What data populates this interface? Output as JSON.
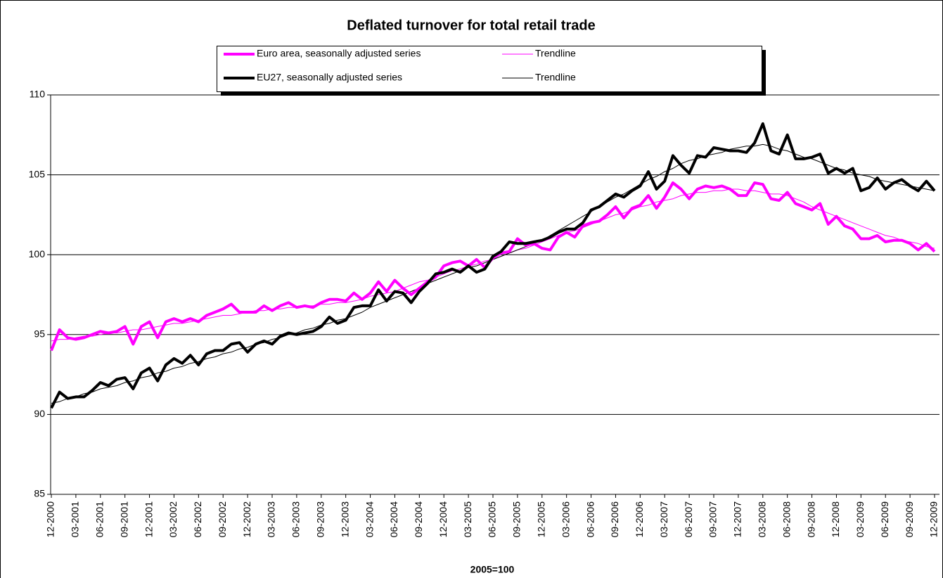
{
  "chart_data": {
    "type": "line",
    "title": "Deflated turnover for total retail trade",
    "x_label": "2005=100",
    "categories": [
      "12-2000",
      null,
      null,
      "03-2001",
      null,
      null,
      "06-2001",
      null,
      null,
      "09-2001",
      null,
      null,
      "12-2001",
      null,
      null,
      "03-2002",
      null,
      null,
      "06-2002",
      null,
      null,
      "09-2002",
      null,
      null,
      "12-2002",
      null,
      null,
      "03-2003",
      null,
      null,
      "06-2003",
      null,
      null,
      "09-2003",
      null,
      null,
      "12-2003",
      null,
      null,
      "03-2004",
      null,
      null,
      "06-2004",
      null,
      null,
      "09-2004",
      null,
      null,
      "12-2004",
      null,
      null,
      "03-2005",
      null,
      null,
      "06-2005",
      null,
      null,
      "09-2005",
      null,
      null,
      "12-2005",
      null,
      null,
      "03-2006",
      null,
      null,
      "06-2006",
      null,
      null,
      "09-2006",
      null,
      null,
      "12-2006",
      null,
      null,
      "03-2007",
      null,
      null,
      "06-2007",
      null,
      null,
      "09-2007",
      null,
      null,
      "12-2007",
      null,
      null,
      "03-2008",
      null,
      null,
      "06-2008",
      null,
      null,
      "09-2008",
      null,
      null,
      "12-2008",
      null,
      null,
      "03-2009",
      null,
      null,
      "06-2009",
      null,
      null,
      "09-2009",
      null,
      null,
      "12-2009"
    ],
    "ylim": [
      85,
      110
    ],
    "yticks": [
      85,
      90,
      95,
      100,
      105,
      110
    ],
    "grid": true,
    "series": [
      {
        "name": "Euro area, seasonally adjusted series",
        "color": "#ff00ff",
        "line_width": 4,
        "values": [
          94.0,
          95.3,
          94.8,
          94.7,
          94.8,
          95.0,
          95.2,
          95.1,
          95.2,
          95.5,
          94.4,
          95.5,
          95.8,
          94.8,
          95.8,
          96.0,
          95.8,
          96.0,
          95.8,
          96.2,
          96.4,
          96.6,
          96.9,
          96.4,
          96.4,
          96.4,
          96.8,
          96.5,
          96.8,
          97.0,
          96.7,
          96.8,
          96.7,
          97.0,
          97.2,
          97.2,
          97.1,
          97.6,
          97.2,
          97.6,
          98.3,
          97.7,
          98.4,
          97.9,
          97.5,
          97.9,
          98.3,
          98.6,
          99.3,
          99.5,
          99.6,
          99.3,
          99.7,
          99.2,
          99.8,
          100.1,
          100.2,
          101.0,
          100.6,
          100.7,
          100.4,
          100.3,
          101.1,
          101.4,
          101.1,
          101.8,
          102.0,
          102.1,
          102.5,
          103.0,
          102.3,
          102.9,
          103.1,
          103.7,
          102.9,
          103.6,
          104.5,
          104.1,
          103.5,
          104.1,
          104.3,
          104.2,
          104.3,
          104.1,
          103.7,
          103.7,
          104.5,
          104.4,
          103.5,
          103.4,
          103.9,
          103.2,
          103.0,
          102.8,
          103.2,
          101.9,
          102.4,
          101.8,
          101.6,
          101.0,
          101.0,
          101.2,
          100.8,
          100.9,
          100.9,
          100.7,
          100.3,
          100.7,
          100.2
        ]
      },
      {
        "name": "Trendline",
        "color": "#ff00ff",
        "line_width": 1,
        "values": [
          94.6,
          94.7,
          94.7,
          94.8,
          94.9,
          94.9,
          95.0,
          95.1,
          95.1,
          95.2,
          95.3,
          95.3,
          95.4,
          95.5,
          95.6,
          95.7,
          95.7,
          95.8,
          95.9,
          96.0,
          96.1,
          96.2,
          96.2,
          96.3,
          96.4,
          96.5,
          96.5,
          96.6,
          96.6,
          96.7,
          96.7,
          96.8,
          96.8,
          96.9,
          96.9,
          97.0,
          97.0,
          97.1,
          97.2,
          97.4,
          97.5,
          97.6,
          97.7,
          97.9,
          98.1,
          98.3,
          98.4,
          98.6,
          98.8,
          99.0,
          99.1,
          99.3,
          99.4,
          99.6,
          99.7,
          99.9,
          100.1,
          100.3,
          100.4,
          100.6,
          100.8,
          101.0,
          101.2,
          101.4,
          101.5,
          101.7,
          101.9,
          102.1,
          102.3,
          102.5,
          102.6,
          102.8,
          103.0,
          103.1,
          103.3,
          103.4,
          103.5,
          103.7,
          103.8,
          103.9,
          103.9,
          104.0,
          104.0,
          104.1,
          104.1,
          104.0,
          104.0,
          103.9,
          103.8,
          103.8,
          103.7,
          103.5,
          103.3,
          103.0,
          102.8,
          102.6,
          102.4,
          102.2,
          102.0,
          101.8,
          101.6,
          101.4,
          101.2,
          101.1,
          100.9,
          100.8,
          100.7,
          100.5,
          100.4
        ]
      },
      {
        "name": "EU27, seasonally adjusted series",
        "color": "#000000",
        "line_width": 4,
        "values": [
          90.4,
          91.4,
          91.0,
          91.1,
          91.1,
          91.5,
          92.0,
          91.8,
          92.2,
          92.3,
          91.6,
          92.6,
          92.9,
          92.1,
          93.1,
          93.5,
          93.2,
          93.7,
          93.1,
          93.8,
          94.0,
          94.0,
          94.4,
          94.5,
          93.9,
          94.4,
          94.6,
          94.4,
          94.9,
          95.1,
          95.0,
          95.1,
          95.2,
          95.5,
          96.1,
          95.7,
          95.9,
          96.7,
          96.8,
          96.8,
          97.8,
          97.1,
          97.7,
          97.6,
          97.0,
          97.7,
          98.2,
          98.8,
          98.9,
          99.1,
          98.9,
          99.3,
          98.9,
          99.1,
          99.9,
          100.2,
          100.8,
          100.7,
          100.7,
          100.8,
          100.9,
          101.1,
          101.4,
          101.6,
          101.6,
          102.0,
          102.8,
          103.0,
          103.4,
          103.8,
          103.6,
          104.0,
          104.3,
          105.2,
          104.1,
          104.6,
          106.2,
          105.6,
          105.1,
          106.2,
          106.1,
          106.7,
          106.6,
          106.5,
          106.5,
          106.4,
          107.0,
          108.2,
          106.5,
          106.3,
          107.5,
          106.0,
          106.0,
          106.1,
          106.3,
          105.1,
          105.4,
          105.1,
          105.4,
          104.0,
          104.2,
          104.8,
          104.1,
          104.5,
          104.7,
          104.3,
          104.0,
          104.6,
          104.0
        ]
      },
      {
        "name": "Trendline",
        "color": "#000000",
        "line_width": 1,
        "values": [
          90.7,
          90.8,
          91.0,
          91.1,
          91.3,
          91.4,
          91.6,
          91.7,
          91.8,
          92.0,
          92.1,
          92.3,
          92.4,
          92.6,
          92.7,
          92.9,
          93.0,
          93.2,
          93.3,
          93.5,
          93.6,
          93.8,
          93.9,
          94.1,
          94.2,
          94.4,
          94.5,
          94.7,
          94.8,
          95.0,
          95.1,
          95.3,
          95.4,
          95.6,
          95.7,
          95.9,
          96.0,
          96.2,
          96.4,
          96.7,
          96.9,
          97.1,
          97.3,
          97.5,
          97.7,
          97.9,
          98.2,
          98.4,
          98.6,
          98.8,
          99.0,
          99.2,
          99.3,
          99.5,
          99.7,
          99.9,
          100.1,
          100.3,
          100.5,
          100.7,
          100.9,
          101.2,
          101.5,
          101.8,
          102.1,
          102.4,
          102.7,
          103.0,
          103.3,
          103.6,
          103.8,
          104.1,
          104.4,
          104.7,
          104.9,
          105.2,
          105.4,
          105.7,
          105.9,
          106.0,
          106.2,
          106.3,
          106.4,
          106.6,
          106.7,
          106.8,
          106.8,
          106.9,
          106.8,
          106.6,
          106.5,
          106.3,
          106.1,
          106.0,
          105.8,
          105.6,
          105.4,
          105.3,
          105.1,
          105.0,
          104.9,
          104.7,
          104.6,
          104.5,
          104.4,
          104.3,
          104.2,
          104.1,
          104.0
        ]
      }
    ]
  }
}
